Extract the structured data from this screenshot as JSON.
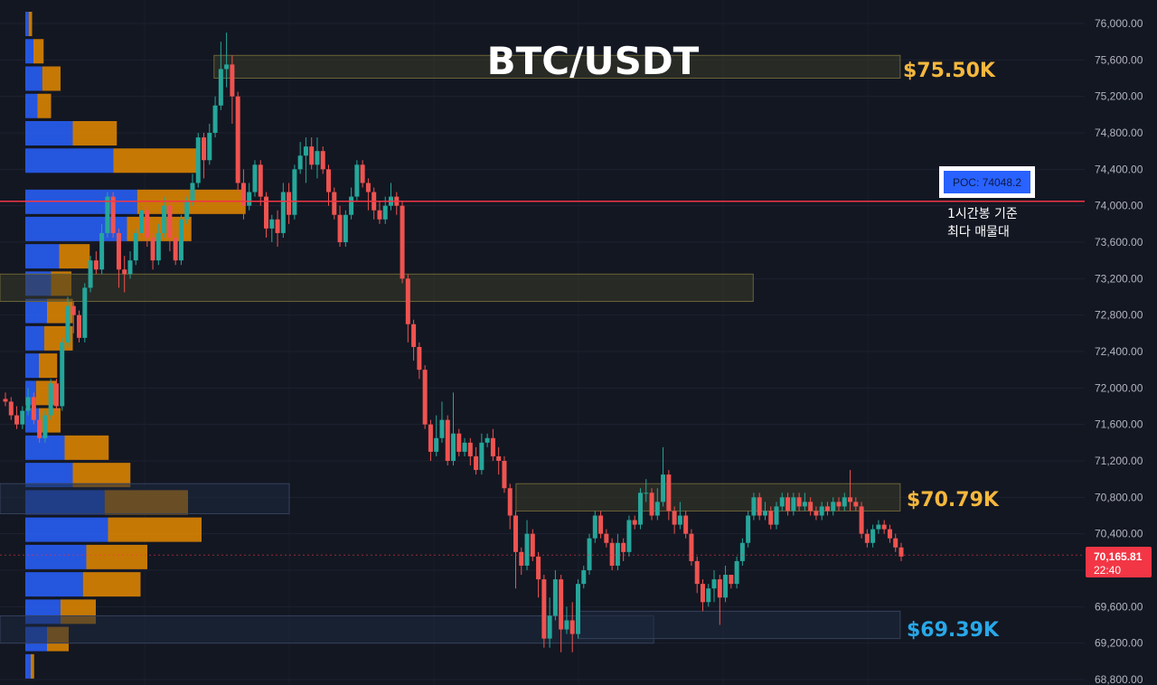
{
  "title": "BTC/USDT",
  "colors": {
    "background": "#131722",
    "up": "#26a69a",
    "down": "#ef5350",
    "volume_buy": "#2962ff",
    "volume_sell": "#e68a00",
    "zone_fill": "#3b3a28",
    "zone_blue_fill": "#1e2a3f",
    "poc_line": "#f23645",
    "label_gold": "#f5b83d",
    "label_blue": "#29a8e8",
    "price_tag": "#f23645"
  },
  "price_axis": {
    "ticks": [
      "76,000.00",
      "75,600.00",
      "75,200.00",
      "74,800.00",
      "74,400.00",
      "74,000.00",
      "73,600.00",
      "73,200.00",
      "72,800.00",
      "72,400.00",
      "72,000.00",
      "71,600.00",
      "71,200.00",
      "70,800.00",
      "70,400.00",
      "70,000.00",
      "69,600.00",
      "69,200.00",
      "68,800.00"
    ],
    "current_price": "70,165.81",
    "countdown": "22:40"
  },
  "poc": {
    "box_label": "POC: 74048.2",
    "note_line1": "1시간봉 기준",
    "note_line2": "최다 매물대",
    "price": 74048.2
  },
  "levels": [
    {
      "label": "$75.50K",
      "color": "gold"
    },
    {
      "label": "$70.79K",
      "color": "gold"
    },
    {
      "label": "$69.39K",
      "color": "blue"
    }
  ],
  "chart_data": {
    "type": "candlestick",
    "title": "BTC/USDT",
    "ylim": [
      68750,
      76150
    ],
    "candles": [
      [
        71880,
        71850,
        71800,
        71950
      ],
      [
        71850,
        71700,
        71650,
        71900
      ],
      [
        71700,
        71600,
        71550,
        71800
      ],
      [
        71600,
        71750,
        71550,
        71800
      ],
      [
        71750,
        71900,
        71700,
        72000
      ],
      [
        71900,
        71650,
        71600,
        71950
      ],
      [
        71650,
        71450,
        71400,
        71700
      ],
      [
        71450,
        71700,
        71400,
        71750
      ],
      [
        71700,
        72050,
        71650,
        72100
      ],
      [
        72050,
        71800,
        71750,
        72100
      ],
      [
        71800,
        72500,
        71750,
        72550
      ],
      [
        72500,
        72900,
        72450,
        73000
      ],
      [
        72900,
        72800,
        72600,
        72950
      ],
      [
        72800,
        72550,
        72500,
        72850
      ],
      [
        72550,
        73100,
        72500,
        73150
      ],
      [
        73100,
        73400,
        73050,
        73450
      ],
      [
        73400,
        73300,
        73250,
        73500
      ],
      [
        73300,
        73700,
        73250,
        73800
      ],
      [
        73700,
        74100,
        73650,
        74150
      ],
      [
        74100,
        73700,
        73650,
        74150
      ],
      [
        73700,
        73300,
        73100,
        73750
      ],
      [
        73300,
        73250,
        73050,
        73450
      ],
      [
        73250,
        73400,
        73200,
        73500
      ],
      [
        73400,
        73700,
        73350,
        73750
      ],
      [
        73700,
        73950,
        73650,
        74000
      ],
      [
        73950,
        73650,
        73550,
        74000
      ],
      [
        73650,
        73400,
        73300,
        73700
      ],
      [
        73400,
        73700,
        73350,
        73800
      ],
      [
        73700,
        74000,
        73650,
        74100
      ],
      [
        74000,
        73650,
        73500,
        74050
      ],
      [
        73650,
        73400,
        73350,
        73750
      ],
      [
        73400,
        73850,
        73350,
        73900
      ],
      [
        73850,
        74050,
        73800,
        74100
      ],
      [
        74050,
        74250,
        74000,
        74350
      ],
      [
        74250,
        74750,
        74200,
        74800
      ],
      [
        74750,
        74500,
        74300,
        74800
      ],
      [
        74500,
        74800,
        74450,
        74900
      ],
      [
        74800,
        75100,
        74750,
        75200
      ],
      [
        75100,
        75500,
        75050,
        75800
      ],
      [
        75500,
        75550,
        75300,
        75900
      ],
      [
        75550,
        75200,
        74900,
        75650
      ],
      [
        75200,
        74250,
        74150,
        75250
      ],
      [
        74250,
        74000,
        73850,
        74400
      ],
      [
        74000,
        74150,
        73950,
        74250
      ],
      [
        74150,
        74450,
        74100,
        74500
      ],
      [
        74450,
        74100,
        74000,
        74500
      ],
      [
        74100,
        73750,
        73650,
        74150
      ],
      [
        73750,
        73850,
        73600,
        73900
      ],
      [
        73850,
        73700,
        73550,
        73950
      ],
      [
        73700,
        74150,
        73650,
        74250
      ],
      [
        74150,
        73900,
        73800,
        74250
      ],
      [
        73900,
        74400,
        73850,
        74450
      ],
      [
        74400,
        74550,
        74350,
        74700
      ],
      [
        74550,
        74650,
        74250,
        74750
      ],
      [
        74650,
        74450,
        74400,
        74750
      ],
      [
        74450,
        74600,
        74300,
        74750
      ],
      [
        74600,
        74400,
        74350,
        74650
      ],
      [
        74400,
        74150,
        74000,
        74450
      ],
      [
        74150,
        73900,
        73850,
        74200
      ],
      [
        73900,
        73600,
        73550,
        74000
      ],
      [
        73600,
        73900,
        73550,
        73950
      ],
      [
        73900,
        74100,
        73850,
        74200
      ],
      [
        74100,
        74450,
        74050,
        74500
      ],
      [
        74450,
        74250,
        74200,
        74500
      ],
      [
        74250,
        74150,
        73950,
        74300
      ],
      [
        74150,
        73950,
        73850,
        74200
      ],
      [
        73950,
        73850,
        73800,
        74050
      ],
      [
        73850,
        74000,
        73800,
        74100
      ],
      [
        74000,
        74100,
        73950,
        74250
      ],
      [
        74100,
        74000,
        73900,
        74150
      ],
      [
        74000,
        73200,
        73150,
        74050
      ],
      [
        73200,
        72700,
        72500,
        73250
      ],
      [
        72700,
        72450,
        72300,
        72750
      ],
      [
        72450,
        72200,
        72100,
        72500
      ],
      [
        72200,
        71600,
        71550,
        72250
      ],
      [
        71600,
        71300,
        71200,
        71650
      ],
      [
        71300,
        71450,
        71250,
        71700
      ],
      [
        71450,
        71650,
        71400,
        71850
      ],
      [
        71650,
        71200,
        71150,
        71700
      ],
      [
        71200,
        71500,
        71150,
        71950
      ],
      [
        71500,
        71300,
        71250,
        71550
      ],
      [
        71300,
        71400,
        71250,
        71450
      ],
      [
        71400,
        71250,
        71150,
        71450
      ],
      [
        71250,
        71100,
        71050,
        71350
      ],
      [
        71100,
        71400,
        71050,
        71500
      ],
      [
        71400,
        71450,
        71350,
        71500
      ],
      [
        71450,
        71250,
        71200,
        71550
      ],
      [
        71250,
        71200,
        71050,
        71350
      ],
      [
        71200,
        70900,
        70850,
        71250
      ],
      [
        70900,
        70600,
        70450,
        70950
      ],
      [
        70600,
        70200,
        69800,
        70650
      ],
      [
        70200,
        70050,
        69950,
        70250
      ],
      [
        70050,
        70400,
        70000,
        70550
      ],
      [
        70400,
        70150,
        70100,
        70450
      ],
      [
        70150,
        69900,
        69700,
        70200
      ],
      [
        69900,
        69250,
        69150,
        69950
      ],
      [
        69250,
        69500,
        69150,
        69700
      ],
      [
        69500,
        69900,
        69450,
        70000
      ],
      [
        69900,
        69350,
        69100,
        69950
      ],
      [
        69350,
        69450,
        69300,
        69600
      ],
      [
        69450,
        69300,
        69100,
        69650
      ],
      [
        69300,
        69850,
        69250,
        69900
      ],
      [
        69850,
        70000,
        69800,
        70050
      ],
      [
        70000,
        70350,
        69950,
        70400
      ],
      [
        70350,
        70600,
        70300,
        70650
      ],
      [
        70600,
        70400,
        70350,
        70650
      ],
      [
        70400,
        70300,
        70250,
        70450
      ],
      [
        70300,
        70050,
        70000,
        70350
      ],
      [
        70050,
        70300,
        70000,
        70400
      ],
      [
        70300,
        70200,
        70100,
        70350
      ],
      [
        70200,
        70550,
        70150,
        70600
      ],
      [
        70550,
        70500,
        70450,
        70600
      ],
      [
        70500,
        70850,
        70450,
        70900
      ],
      [
        70850,
        70850,
        70750,
        71000
      ],
      [
        70850,
        70600,
        70550,
        70900
      ],
      [
        70600,
        70750,
        70550,
        70900
      ],
      [
        70750,
        71050,
        70700,
        71350
      ],
      [
        71050,
        70650,
        70550,
        71100
      ],
      [
        70650,
        70500,
        70400,
        70700
      ],
      [
        70500,
        70600,
        70450,
        70750
      ],
      [
        70600,
        70400,
        70350,
        70650
      ],
      [
        70400,
        70100,
        70050,
        70450
      ],
      [
        70100,
        69850,
        69750,
        70150
      ],
      [
        69850,
        69650,
        69550,
        69900
      ],
      [
        69650,
        69800,
        69600,
        69850
      ],
      [
        69800,
        69900,
        69650,
        70000
      ],
      [
        69900,
        69700,
        69400,
        69950
      ],
      [
        69700,
        69950,
        69650,
        70050
      ],
      [
        69950,
        69850,
        69800,
        69950
      ],
      [
        69850,
        70100,
        69800,
        70150
      ],
      [
        70100,
        70300,
        70050,
        70350
      ],
      [
        70300,
        70600,
        70250,
        70650
      ],
      [
        70600,
        70800,
        70550,
        70850
      ],
      [
        70800,
        70600,
        70550,
        70850
      ],
      [
        70600,
        70650,
        70550,
        70750
      ],
      [
        70650,
        70500,
        70450,
        70700
      ],
      [
        70500,
        70700,
        70450,
        70750
      ],
      [
        70700,
        70800,
        70650,
        70850
      ],
      [
        70800,
        70650,
        70600,
        70850
      ],
      [
        70650,
        70800,
        70600,
        70850
      ],
      [
        70800,
        70700,
        70650,
        70850
      ],
      [
        70700,
        70750,
        70650,
        70850
      ],
      [
        70750,
        70650,
        70600,
        70800
      ],
      [
        70650,
        70600,
        70550,
        70700
      ],
      [
        70600,
        70700,
        70550,
        70750
      ],
      [
        70700,
        70650,
        70600,
        70750
      ],
      [
        70650,
        70750,
        70600,
        70800
      ],
      [
        70750,
        70700,
        70650,
        70800
      ],
      [
        70700,
        70800,
        70650,
        70850
      ],
      [
        70800,
        70750,
        70650,
        71100
      ],
      [
        70750,
        70700,
        70650,
        70800
      ],
      [
        70700,
        70400,
        70350,
        70750
      ],
      [
        70400,
        70300,
        70250,
        70450
      ],
      [
        70300,
        70450,
        70250,
        70500
      ],
      [
        70450,
        70500,
        70400,
        70550
      ],
      [
        70500,
        70450,
        70400,
        70550
      ],
      [
        70450,
        70350,
        70300,
        70500
      ],
      [
        70350,
        70250,
        70200,
        70400
      ],
      [
        70250,
        70150,
        70100,
        70300
      ]
    ],
    "volume_profile": [
      {
        "price": 76000,
        "buy": 5,
        "sell": 5
      },
      {
        "price": 75700,
        "buy": 12,
        "sell": 15
      },
      {
        "price": 75400,
        "buy": 25,
        "sell": 27
      },
      {
        "price": 75100,
        "buy": 18,
        "sell": 20
      },
      {
        "price": 74800,
        "buy": 70,
        "sell": 65
      },
      {
        "price": 74500,
        "buy": 130,
        "sell": 125
      },
      {
        "price": 74048,
        "buy": 165,
        "sell": 160
      },
      {
        "price": 73750,
        "buy": 150,
        "sell": 95
      },
      {
        "price": 73450,
        "buy": 50,
        "sell": 45
      },
      {
        "price": 73150,
        "buy": 38,
        "sell": 30
      },
      {
        "price": 72850,
        "buy": 32,
        "sell": 38
      },
      {
        "price": 72550,
        "buy": 28,
        "sell": 42
      },
      {
        "price": 72250,
        "buy": 20,
        "sell": 27
      },
      {
        "price": 71950,
        "buy": 16,
        "sell": 30
      },
      {
        "price": 71650,
        "buy": 20,
        "sell": 32
      },
      {
        "price": 71350,
        "buy": 58,
        "sell": 65
      },
      {
        "price": 71050,
        "buy": 70,
        "sell": 85
      },
      {
        "price": 70750,
        "buy": 117,
        "sell": 123
      },
      {
        "price": 70450,
        "buy": 122,
        "sell": 138
      },
      {
        "price": 70150,
        "buy": 90,
        "sell": 90
      },
      {
        "price": 69850,
        "buy": 85,
        "sell": 85
      },
      {
        "price": 69550,
        "buy": 52,
        "sell": 52
      },
      {
        "price": 69250,
        "buy": 32,
        "sell": 32
      },
      {
        "price": 68950,
        "buy": 8,
        "sell": 5
      }
    ],
    "zones": [
      {
        "from": 75400,
        "to": 75650,
        "x0": 0.185,
        "x1": 0.778,
        "kind": "gold"
      },
      {
        "from": 72950,
        "to": 73250,
        "x0": 0.0,
        "x1": 0.651,
        "kind": "gold"
      },
      {
        "from": 70650,
        "to": 70950,
        "x0": 0.446,
        "x1": 0.778,
        "kind": "gold"
      },
      {
        "from": 70620,
        "to": 70950,
        "x0": 0.0,
        "x1": 0.25,
        "kind": "blue"
      },
      {
        "from": 69200,
        "to": 69500,
        "x0": 0.0,
        "x1": 0.565,
        "kind": "blue"
      },
      {
        "from": 69250,
        "to": 69550,
        "x0": 0.5,
        "x1": 0.778,
        "kind": "blue"
      }
    ]
  }
}
